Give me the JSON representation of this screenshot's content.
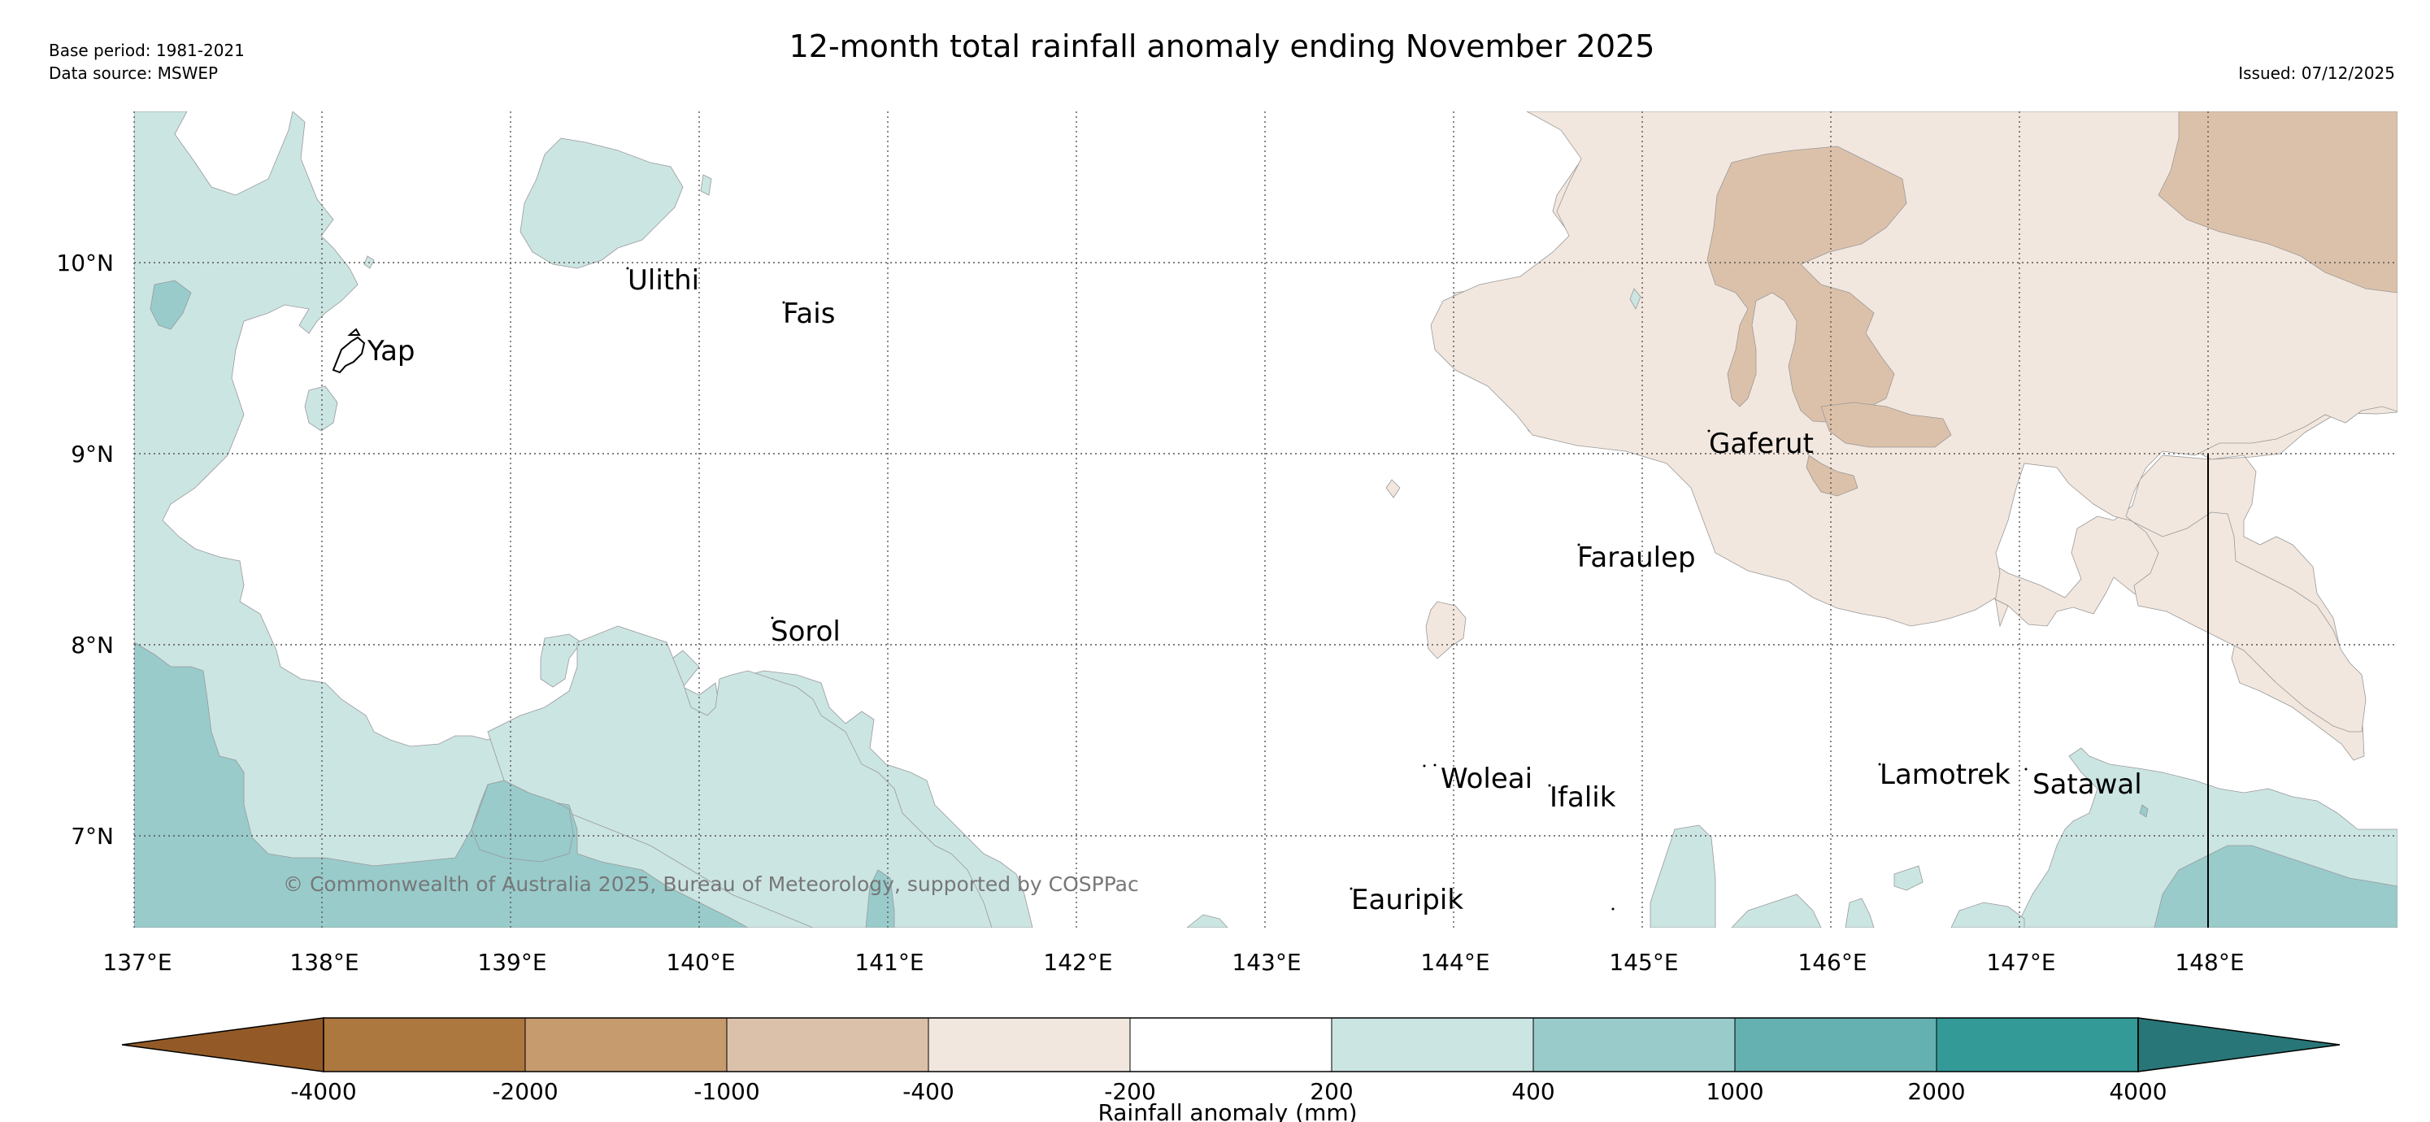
{
  "header": {
    "title": "12-month total rainfall anomaly ending November 2025",
    "base_period": "Base period: 1981-2021",
    "data_source": "Data source: MSWEP",
    "issued": "Issued: 07/12/2025"
  },
  "map": {
    "lon_range": [
      137,
      149
    ],
    "lat_range": [
      6.5,
      10.8
    ],
    "lon_ticks": [
      "137°E",
      "138°E",
      "139°E",
      "140°E",
      "141°E",
      "142°E",
      "143°E",
      "144°E",
      "145°E",
      "146°E",
      "147°E",
      "148°E"
    ],
    "lat_ticks": [
      "10°N",
      "9°N",
      "8°N",
      "7°N"
    ],
    "copyright": "© Commonwealth of Australia 2025, Bureau of Meteorology, supported by COSPPac",
    "places": [
      {
        "name": "Ulithi",
        "lon": 139.6,
        "lat": 9.93
      },
      {
        "name": "Fais",
        "lon": 140.43,
        "lat": 9.75
      },
      {
        "name": "Yap",
        "lon": 138.12,
        "lat": 9.52
      },
      {
        "name": "Gaferut",
        "lon": 145.35,
        "lat": 9.07
      },
      {
        "name": "Faraulep",
        "lon": 144.65,
        "lat": 8.5
      },
      {
        "name": "Sorol",
        "lon": 140.38,
        "lat": 8.1
      },
      {
        "name": "Woleai",
        "lon": 143.9,
        "lat": 7.33
      },
      {
        "name": "Ifalik",
        "lon": 144.45,
        "lat": 7.25
      },
      {
        "name": "Lamotrek",
        "lon": 146.3,
        "lat": 7.33
      },
      {
        "name": "Satawal",
        "lon": 147.05,
        "lat": 7.33
      },
      {
        "name": "Eauripik",
        "lon": 143.46,
        "lat": 6.67
      }
    ]
  },
  "colorbar": {
    "label": "Rainfall anomaly (mm)",
    "ticks": [
      "-4000",
      "-2000",
      "-1000",
      "-400",
      "-200",
      "200",
      "400",
      "1000",
      "2000",
      "4000"
    ],
    "colors": [
      "#ad7740",
      "#c69b6e",
      "#dcc1aa",
      "#f2e7de",
      "#ffffff",
      "#cbe5e3",
      "#99cbcb",
      "#65b0b0",
      "#339a98"
    ],
    "extend_low_color": "#935a27",
    "extend_high_color": "#287678"
  }
}
